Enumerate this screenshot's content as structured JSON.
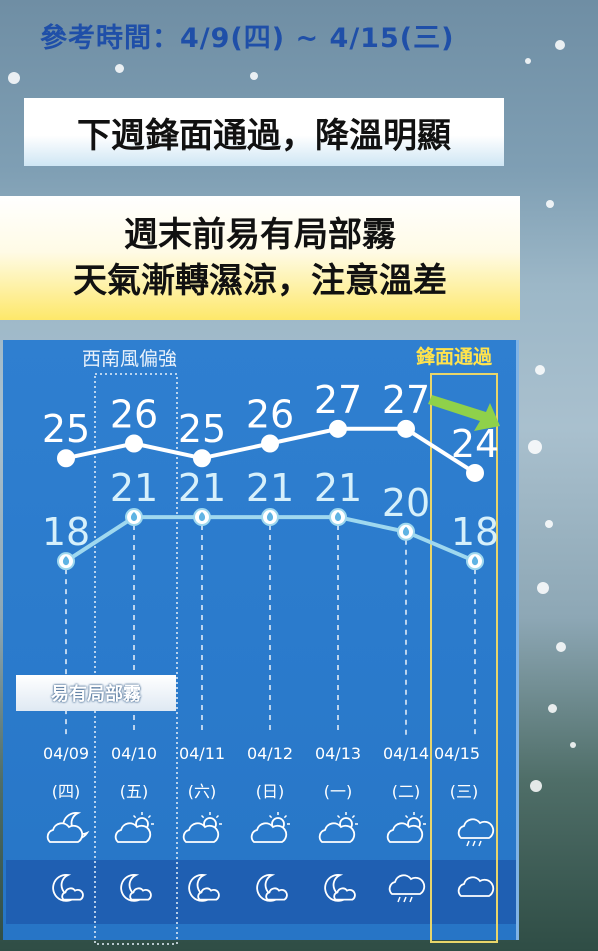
{
  "header": {
    "reference_date": "參考時間：4/9(四) ~ 4/15(三)"
  },
  "banners": {
    "headline": "下週鋒面通過，降溫明顯",
    "line1": "週末前易有局部霧",
    "line2": "天氣漸轉濕涼，注意溫差"
  },
  "annotations": {
    "southwest_wind": "西南風偏強",
    "front_passing": "鋒面通過",
    "fog": "易有局部霧"
  },
  "colors": {
    "panel": "#2a7acb",
    "high_line": "#ffffff",
    "low_line": "#9fd8ef",
    "front_box": "#e8d56a",
    "front_arrow": "#8fd14a"
  },
  "days": [
    {
      "date": "04/09",
      "weekday": "(四)",
      "day_icon": "cloud-moon-icon",
      "night_icon": "moon-cloud-icon"
    },
    {
      "date": "04/10",
      "weekday": "(五)",
      "day_icon": "sun-cloud-icon",
      "night_icon": "moon-cloud-icon"
    },
    {
      "date": "04/11",
      "weekday": "(六)",
      "day_icon": "sun-cloud-icon",
      "night_icon": "moon-cloud-icon"
    },
    {
      "date": "04/12",
      "weekday": "(日)",
      "day_icon": "sun-cloud-icon",
      "night_icon": "moon-cloud-icon"
    },
    {
      "date": "04/13",
      "weekday": "(一)",
      "day_icon": "sun-cloud-icon",
      "night_icon": "moon-cloud-icon"
    },
    {
      "date": "04/14",
      "weekday": "(二)",
      "day_icon": "sun-cloud-icon",
      "night_icon": "rain-cloud-icon"
    },
    {
      "date": "04/15",
      "weekday": "(三)",
      "day_icon": "rain-cloud-icon",
      "night_icon": "cloud-icon"
    }
  ],
  "chart_data": {
    "type": "line",
    "categories": [
      "04/09",
      "04/10",
      "04/11",
      "04/12",
      "04/13",
      "04/14",
      "04/15"
    ],
    "series": [
      {
        "values": [
          25,
          26,
          25,
          26,
          27,
          27,
          24
        ]
      },
      {
        "values": [
          18,
          21,
          21,
          21,
          21,
          20,
          18
        ]
      }
    ],
    "ylim": [
      14,
      31
    ],
    "grid": false,
    "legend": "none"
  }
}
